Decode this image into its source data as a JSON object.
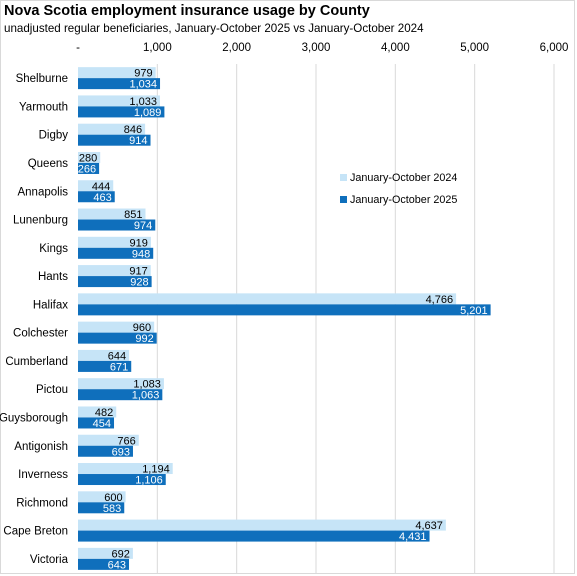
{
  "title": "Nova Scotia employment insurance usage by County",
  "subtitle": "unadjusted regular beneficiaries,  January-October 2025 vs January-October 2024",
  "colors": {
    "series_2024": "#c6e4f7",
    "series_2025": "#0f6fbc",
    "label_2024": "#000000",
    "label_2025": "#ffffff",
    "gridline": "#d9d9d9"
  },
  "chart_data": {
    "type": "bar",
    "orientation": "horizontal",
    "categories": [
      "Shelburne",
      "Yarmouth",
      "Digby",
      "Queens",
      "Annapolis",
      "Lunenburg",
      "Kings",
      "Hants",
      "Halifax",
      "Colchester",
      "Cumberland",
      "Pictou",
      "Guysborough",
      "Antigonish",
      "Inverness",
      "Richmond",
      "Cape Breton",
      "Victoria"
    ],
    "series": [
      {
        "name": "January-October 2024",
        "values": [
          979,
          1033,
          846,
          280,
          444,
          851,
          919,
          917,
          4766,
          960,
          644,
          1083,
          482,
          766,
          1194,
          600,
          4637,
          692
        ]
      },
      {
        "name": "January-October 2025",
        "values": [
          1034,
          1089,
          914,
          266,
          463,
          974,
          948,
          928,
          5201,
          992,
          671,
          1063,
          454,
          693,
          1106,
          583,
          4431,
          643
        ]
      }
    ],
    "data_labels": {
      "January-October 2024": [
        "979",
        "1,033",
        "846",
        "280",
        "444",
        "851",
        "919",
        "917",
        "4,766",
        "960",
        "644",
        "1,083",
        "482",
        "766",
        "1,194",
        "600",
        "4,637",
        "692"
      ],
      "January-October 2025": [
        "1,034",
        "1,089",
        "914",
        "266",
        "463",
        "974",
        "948",
        "928",
        "5,201",
        "992",
        "671",
        "1,063",
        "454",
        "693",
        "1,106",
        "583",
        "4,431",
        "643"
      ]
    },
    "xlim": [
      0,
      6000
    ],
    "xticks": [
      0,
      1000,
      2000,
      3000,
      4000,
      5000,
      6000
    ],
    "xtick_labels": [
      "-",
      "1,000",
      "2,000",
      "3,000",
      "4,000",
      "5,000",
      "6,000"
    ],
    "xaxis_position": "top",
    "grid": true,
    "legend": {
      "placement": "right",
      "entries": [
        "January-October 2024",
        "January-October 2025"
      ]
    },
    "xlabel": "",
    "ylabel": ""
  }
}
